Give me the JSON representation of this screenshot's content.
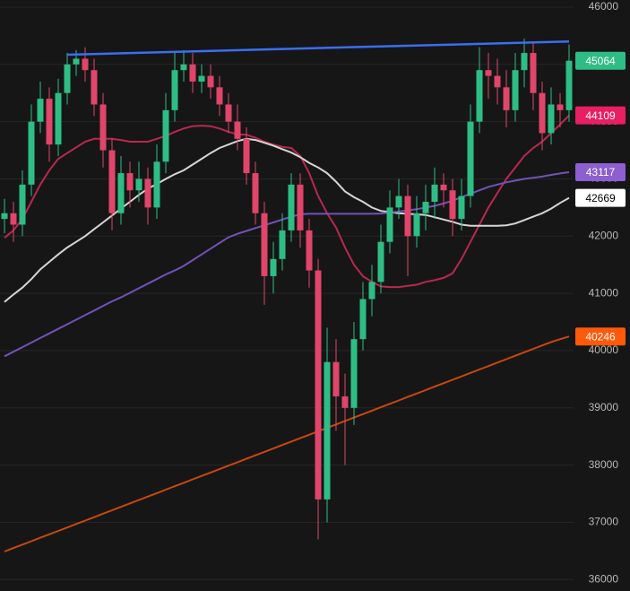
{
  "chart_data": {
    "type": "candlestick",
    "up_color": "#2ebd85",
    "down_color": "#e0456a",
    "open": [
      42300,
      42400,
      42200,
      42900,
      44000,
      44400,
      43600,
      44500,
      45000,
      45100,
      44900,
      44300,
      43500,
      42400,
      43100,
      42800,
      43000,
      42500,
      43300,
      44200,
      44900,
      45000,
      44700,
      44800,
      44600,
      44300,
      44000,
      43700,
      43100,
      42400,
      41300,
      41600,
      42100,
      42900,
      42100,
      41400,
      37400,
      39800,
      39200,
      39000,
      40200,
      40900,
      41200,
      41900,
      42500,
      42700,
      42000,
      42400,
      42600,
      42900,
      42800,
      42300,
      42700,
      44000,
      44900,
      44800,
      44600,
      44200,
      44900,
      45200,
      44500,
      43800,
      44300,
      44200
    ],
    "high": [
      42650,
      42600,
      43150,
      44300,
      44700,
      44600,
      44750,
      45200,
      45250,
      45300,
      45100,
      44500,
      43700,
      43400,
      43300,
      43300,
      43200,
      43600,
      44500,
      45200,
      45250,
      45200,
      45000,
      45000,
      44800,
      44500,
      44300,
      43900,
      43300,
      42600,
      41900,
      42400,
      43100,
      43100,
      42300,
      41600,
      40400,
      40200,
      39600,
      40500,
      41200,
      41500,
      42200,
      42800,
      43000,
      42900,
      42700,
      42900,
      43200,
      43100,
      43000,
      43000,
      44300,
      45300,
      45200,
      45100,
      44900,
      45200,
      45450,
      45400,
      44700,
      44600,
      44500,
      45350
    ],
    "low": [
      42050,
      41900,
      42000,
      42700,
      43800,
      43300,
      43400,
      44300,
      44800,
      44700,
      44100,
      43200,
      42100,
      42200,
      42500,
      42600,
      42200,
      42300,
      43100,
      44000,
      44700,
      44500,
      44500,
      44400,
      44100,
      43800,
      43500,
      42900,
      42200,
      40800,
      41000,
      41400,
      41900,
      41800,
      41100,
      36700,
      37000,
      38600,
      38000,
      38700,
      40000,
      40600,
      41000,
      41700,
      42300,
      41300,
      41800,
      42100,
      42300,
      42500,
      42000,
      42100,
      42500,
      43800,
      44400,
      44300,
      43900,
      44000,
      44600,
      44200,
      43500,
      43600,
      43900,
      44000
    ],
    "close": [
      42400,
      42200,
      42900,
      44000,
      44400,
      43600,
      44500,
      45000,
      45100,
      44900,
      44300,
      43500,
      42400,
      43100,
      42800,
      43000,
      42500,
      43300,
      44200,
      44900,
      45000,
      44700,
      44800,
      44600,
      44300,
      44000,
      43700,
      43100,
      42400,
      41300,
      41600,
      42100,
      42900,
      42100,
      41400,
      37400,
      39800,
      39200,
      39000,
      40200,
      40900,
      41200,
      41900,
      42500,
      42700,
      42000,
      42400,
      42600,
      42900,
      42800,
      42300,
      42700,
      44000,
      44900,
      44800,
      44600,
      44200,
      44900,
      45200,
      44500,
      43800,
      44300,
      44200,
      45064
    ],
    "moving_averages": [
      {
        "color": "#b8294f",
        "label_color": "#e91e63",
        "values": [
          41970,
          42100,
          42300,
          42600,
          42900,
          43150,
          43350,
          43450,
          43550,
          43650,
          43700,
          43700,
          43700,
          43680,
          43650,
          43650,
          43650,
          43700,
          43750,
          43820,
          43880,
          43920,
          43930,
          43920,
          43880,
          43820,
          43780,
          43770,
          43720,
          43650,
          43600,
          43560,
          43540,
          43400,
          43100,
          42700,
          42400,
          42150,
          41800,
          41500,
          41300,
          41200,
          41120,
          41110,
          41110,
          41130,
          41150,
          41200,
          41230,
          41270,
          41350,
          41600,
          41900,
          42200,
          42500,
          42750,
          43000,
          43200,
          43400,
          43540,
          43650,
          43800,
          43950,
          44109
        ]
      },
      {
        "color": "#d6d6d6",
        "label_color": "#ffffff",
        "values": [
          40850,
          40980,
          41100,
          41250,
          41420,
          41550,
          41680,
          41800,
          41900,
          42000,
          42120,
          42240,
          42360,
          42480,
          42600,
          42720,
          42830,
          42910,
          43000,
          43080,
          43150,
          43250,
          43350,
          43450,
          43540,
          43600,
          43660,
          43700,
          43680,
          43630,
          43580,
          43520,
          43460,
          43380,
          43280,
          43200,
          43100,
          42950,
          42780,
          42680,
          42600,
          42500,
          42440,
          42420,
          42400,
          42390,
          42380,
          42370,
          42330,
          42290,
          42250,
          42200,
          42180,
          42180,
          42180,
          42180,
          42190,
          42220,
          42280,
          42340,
          42400,
          42480,
          42580,
          42669
        ]
      },
      {
        "color": "#7252b8",
        "label_color": "#8e5fd0",
        "values": [
          39900,
          39980,
          40060,
          40140,
          40220,
          40300,
          40380,
          40460,
          40540,
          40620,
          40700,
          40780,
          40860,
          40930,
          41010,
          41090,
          41170,
          41250,
          41330,
          41400,
          41480,
          41580,
          41680,
          41780,
          41880,
          41980,
          42040,
          42090,
          42140,
          42190,
          42240,
          42290,
          42340,
          42380,
          42390,
          42390,
          42390,
          42390,
          42390,
          42390,
          42390,
          42390,
          42395,
          42410,
          42430,
          42450,
          42470,
          42500,
          42530,
          42570,
          42620,
          42680,
          42740,
          42800,
          42860,
          42900,
          42940,
          42970,
          43000,
          43020,
          43040,
          43070,
          43095,
          43117
        ]
      },
      {
        "color": "#c9470f",
        "label_color": "#ff5a0a",
        "values": [
          36490,
          36550,
          36610,
          36670,
          36730,
          36790,
          36850,
          36910,
          36970,
          37030,
          37090,
          37150,
          37210,
          37270,
          37330,
          37390,
          37450,
          37510,
          37570,
          37630,
          37690,
          37750,
          37810,
          37870,
          37930,
          37990,
          38050,
          38110,
          38170,
          38230,
          38290,
          38350,
          38410,
          38470,
          38530,
          38590,
          38650,
          38710,
          38770,
          38830,
          38890,
          38950,
          39010,
          39070,
          39130,
          39190,
          39250,
          39310,
          39370,
          39430,
          39490,
          39550,
          39610,
          39670,
          39730,
          39790,
          39850,
          39910,
          39970,
          40030,
          40090,
          40150,
          40200,
          40246
        ]
      }
    ],
    "trendline": {
      "color": "#3b6ef5",
      "x": [
        7,
        63
      ],
      "values": [
        45170,
        45400
      ]
    },
    "ylim": [
      35800,
      46125
    ],
    "yticks": [
      36000,
      37000,
      38000,
      39000,
      40000,
      41000,
      42000,
      43000,
      44000,
      45000,
      46000
    ],
    "grid": true
  }
}
